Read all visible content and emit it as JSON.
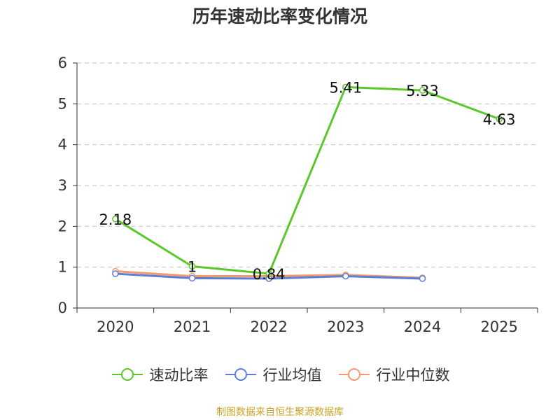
{
  "chart_data": {
    "type": "line",
    "title": "历年速动比率变化情况",
    "categories": [
      "2020",
      "2021",
      "2022",
      "2023",
      "2024",
      "2025"
    ],
    "ylim": [
      0,
      6
    ],
    "yticks": [
      0,
      1,
      2,
      3,
      4,
      5,
      6
    ],
    "grid": true,
    "legend_position": "bottom",
    "series": [
      {
        "name": "速动比率",
        "color": "#5bc72a",
        "values": [
          2.18,
          1.02,
          0.84,
          5.41,
          5.33,
          4.63
        ],
        "labels": [
          "2.18",
          "1",
          "0.84",
          "5.41",
          "5.33",
          "4.63"
        ]
      },
      {
        "name": "行业均值",
        "color": "#5b7fd6",
        "values": [
          0.84,
          0.73,
          0.72,
          0.78,
          0.72,
          null
        ]
      },
      {
        "name": "行业中位数",
        "color": "#f39a6c",
        "values": [
          0.9,
          0.78,
          0.78,
          0.81,
          0.74,
          null
        ]
      }
    ]
  },
  "footer": {
    "source": "制图数据来自恒生聚源数据库"
  }
}
